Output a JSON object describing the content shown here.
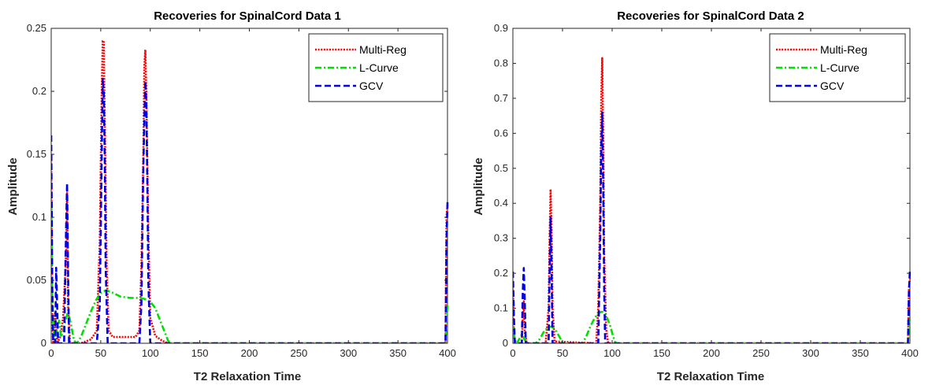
{
  "chart_data": [
    {
      "type": "line",
      "title": "Recoveries for SpinalCord Data 1",
      "xlabel": "T2 Relaxation Time",
      "ylabel": "Amplitude",
      "xlim": [
        0,
        400
      ],
      "ylim": [
        0,
        0.25
      ],
      "xticks": [
        0,
        50,
        100,
        150,
        200,
        250,
        300,
        350,
        400
      ],
      "xtick_labels": [
        "0",
        "50",
        "100",
        "150",
        "200",
        "250",
        "300",
        "350",
        "400"
      ],
      "yticks": [
        0,
        0.05,
        0.1,
        0.15,
        0.2,
        0.25
      ],
      "ytick_labels": [
        "0",
        "0.05",
        "0.1",
        "0.15",
        "0.2",
        "0.25"
      ],
      "legend": "top-right",
      "series": [
        {
          "name": "Multi-Reg",
          "color": "#ff0000",
          "style": "dotted",
          "points": [
            [
              0,
              0.15
            ],
            [
              1,
              0.02
            ],
            [
              2,
              0
            ],
            [
              4,
              0.025
            ],
            [
              6,
              0
            ],
            [
              9,
              0.005
            ],
            [
              12,
              0.02
            ],
            [
              15,
              0.07
            ],
            [
              16,
              0.12
            ],
            [
              17,
              0.03
            ],
            [
              19,
              0
            ],
            [
              30,
              0
            ],
            [
              40,
              0.003
            ],
            [
              46,
              0.01
            ],
            [
              49,
              0.08
            ],
            [
              51,
              0.2
            ],
            [
              52,
              0.24
            ],
            [
              53,
              0.24
            ],
            [
              54,
              0.18
            ],
            [
              56,
              0.06
            ],
            [
              58,
              0.01
            ],
            [
              62,
              0.005
            ],
            [
              85,
              0.005
            ],
            [
              89,
              0.01
            ],
            [
              91,
              0.06
            ],
            [
              93,
              0.15
            ],
            [
              94,
              0.22
            ],
            [
              95,
              0.233
            ],
            [
              96,
              0.2
            ],
            [
              98,
              0.09
            ],
            [
              100,
              0.02
            ],
            [
              105,
              0.006
            ],
            [
              112,
              0.002
            ],
            [
              118,
              0
            ],
            [
              398,
              0
            ],
            [
              399,
              0.1
            ],
            [
              400,
              0.11
            ]
          ]
        },
        {
          "name": "L-Curve",
          "color": "#00e000",
          "style": "dashdot",
          "points": [
            [
              0,
              0.12
            ],
            [
              1,
              0.04
            ],
            [
              2,
              0.015
            ],
            [
              4,
              0.003
            ],
            [
              6,
              0.012
            ],
            [
              8,
              0.018
            ],
            [
              10,
              0.005
            ],
            [
              12,
              0.01
            ],
            [
              15,
              0.02
            ],
            [
              17,
              0.025
            ],
            [
              20,
              0.015
            ],
            [
              23,
              0.002
            ],
            [
              26,
              0
            ],
            [
              30,
              0.005
            ],
            [
              35,
              0.015
            ],
            [
              40,
              0.025
            ],
            [
              45,
              0.034
            ],
            [
              50,
              0.04
            ],
            [
              55,
              0.042
            ],
            [
              60,
              0.041
            ],
            [
              65,
              0.039
            ],
            [
              70,
              0.037
            ],
            [
              80,
              0.036
            ],
            [
              90,
              0.036
            ],
            [
              95,
              0.035
            ],
            [
              100,
              0.033
            ],
            [
              105,
              0.028
            ],
            [
              110,
              0.018
            ],
            [
              115,
              0.008
            ],
            [
              118,
              0.002
            ],
            [
              120,
              0
            ],
            [
              398,
              0
            ],
            [
              399,
              0.02
            ],
            [
              400,
              0.03
            ]
          ]
        },
        {
          "name": "GCV",
          "color": "#0000e6",
          "style": "dashed",
          "points": [
            [
              0,
              0.165
            ],
            [
              1,
              0.05
            ],
            [
              2,
              0
            ],
            [
              4,
              0
            ],
            [
              5,
              0.06
            ],
            [
              6,
              0.03
            ],
            [
              7,
              0
            ],
            [
              13,
              0
            ],
            [
              15,
              0.09
            ],
            [
              16,
              0.127
            ],
            [
              17,
              0.06
            ],
            [
              18,
              0
            ],
            [
              46,
              0
            ],
            [
              49,
              0.03
            ],
            [
              51,
              0.15
            ],
            [
              52,
              0.21
            ],
            [
              53,
              0.2
            ],
            [
              54,
              0.15
            ],
            [
              55,
              0.06
            ],
            [
              57,
              0
            ],
            [
              89,
              0
            ],
            [
              91,
              0.03
            ],
            [
              93,
              0.14
            ],
            [
              95,
              0.208
            ],
            [
              96,
              0.19
            ],
            [
              97,
              0.13
            ],
            [
              98,
              0.05
            ],
            [
              100,
              0
            ],
            [
              398,
              0
            ],
            [
              399,
              0.08
            ],
            [
              400,
              0.112
            ]
          ]
        }
      ]
    },
    {
      "type": "line",
      "title": "Recoveries for SpinalCord Data 2",
      "xlabel": "T2 Relaxation Time",
      "ylabel": "Amplitude",
      "xlim": [
        0,
        400
      ],
      "ylim": [
        0,
        0.9
      ],
      "xticks": [
        0,
        50,
        100,
        150,
        200,
        250,
        300,
        350,
        400
      ],
      "xtick_labels": [
        "0",
        "50",
        "100",
        "150",
        "200",
        "250",
        "300",
        "350",
        "400"
      ],
      "yticks": [
        0,
        0.1,
        0.2,
        0.3,
        0.4,
        0.5,
        0.6,
        0.7,
        0.8,
        0.9
      ],
      "ytick_labels": [
        "0",
        "0.1",
        "0.2",
        "0.3",
        "0.4",
        "0.5",
        "0.6",
        "0.7",
        "0.8",
        "0.9"
      ],
      "legend": "top-right",
      "series": [
        {
          "name": "Multi-Reg",
          "color": "#ff0000",
          "style": "dotted",
          "points": [
            [
              0,
              0.17
            ],
            [
              1,
              0.02
            ],
            [
              3,
              0
            ],
            [
              9,
              0
            ],
            [
              10,
              0.08
            ],
            [
              11,
              0.12
            ],
            [
              12,
              0.03
            ],
            [
              14,
              0
            ],
            [
              33,
              0
            ],
            [
              36,
              0.1
            ],
            [
              37,
              0.3
            ],
            [
              38,
              0.44
            ],
            [
              39,
              0.32
            ],
            [
              40,
              0.1
            ],
            [
              42,
              0.005
            ],
            [
              84,
              0
            ],
            [
              86,
              0.1
            ],
            [
              88,
              0.4
            ],
            [
              89,
              0.7
            ],
            [
              90,
              0.815
            ],
            [
              91,
              0.6
            ],
            [
              92,
              0.25
            ],
            [
              94,
              0.04
            ],
            [
              96,
              0
            ],
            [
              398,
              0
            ],
            [
              399,
              0.15
            ],
            [
              400,
              0.19
            ]
          ]
        },
        {
          "name": "L-Curve",
          "color": "#00e000",
          "style": "dashdot",
          "points": [
            [
              0,
              0.07
            ],
            [
              2,
              0.005
            ],
            [
              4,
              0
            ],
            [
              6,
              0.01
            ],
            [
              9,
              0.025
            ],
            [
              12,
              0.01
            ],
            [
              14,
              0
            ],
            [
              23,
              0
            ],
            [
              27,
              0.012
            ],
            [
              31,
              0.032
            ],
            [
              35,
              0.045
            ],
            [
              39,
              0.048
            ],
            [
              43,
              0.038
            ],
            [
              47,
              0.018
            ],
            [
              50,
              0.003
            ],
            [
              52,
              0
            ],
            [
              70,
              0
            ],
            [
              74,
              0.02
            ],
            [
              78,
              0.048
            ],
            [
              82,
              0.07
            ],
            [
              86,
              0.087
            ],
            [
              90,
              0.09
            ],
            [
              94,
              0.08
            ],
            [
              98,
              0.05
            ],
            [
              101,
              0.02
            ],
            [
              103,
              0.003
            ],
            [
              105,
              0
            ],
            [
              398,
              0
            ],
            [
              399,
              0.05
            ],
            [
              400,
              0.07
            ]
          ]
        },
        {
          "name": "GCV",
          "color": "#0000e6",
          "style": "dashed",
          "points": [
            [
              0,
              0.205
            ],
            [
              1,
              0.08
            ],
            [
              2,
              0
            ],
            [
              9,
              0
            ],
            [
              10,
              0.15
            ],
            [
              11,
              0.215
            ],
            [
              12,
              0.12
            ],
            [
              13,
              0
            ],
            [
              36,
              0
            ],
            [
              37,
              0.2
            ],
            [
              38,
              0.36
            ],
            [
              39,
              0.2
            ],
            [
              40,
              0
            ],
            [
              86,
              0
            ],
            [
              88,
              0.3
            ],
            [
              89,
              0.55
            ],
            [
              90,
              0.66
            ],
            [
              91,
              0.45
            ],
            [
              92,
              0.15
            ],
            [
              93,
              0
            ],
            [
              398,
              0
            ],
            [
              399,
              0.15
            ],
            [
              400,
              0.21
            ]
          ]
        }
      ]
    }
  ]
}
